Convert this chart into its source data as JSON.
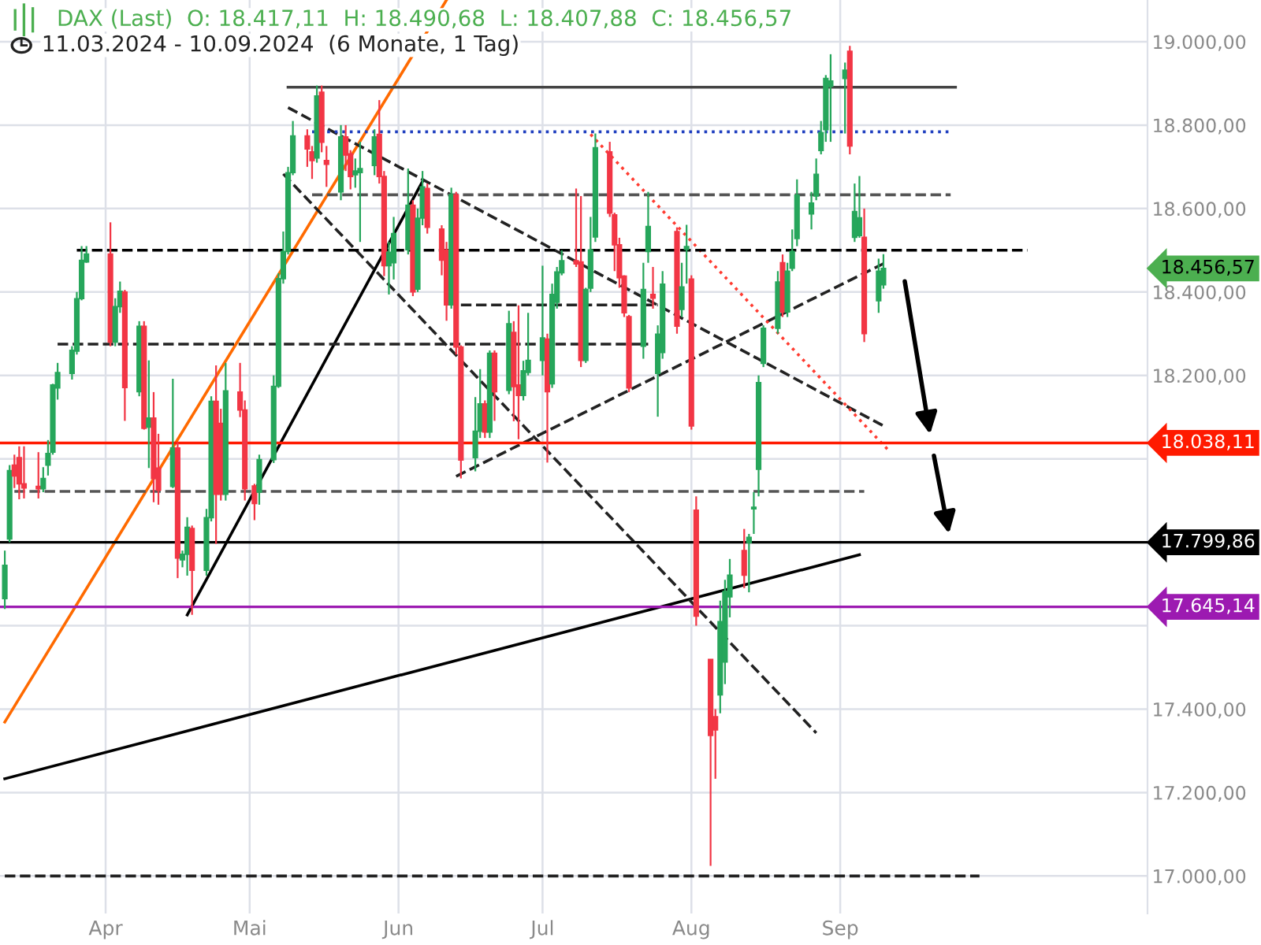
{
  "chart_data": {
    "type": "candlestick",
    "title": "DAX (Last)  O: 18.417,11  H: 18.490,68  L: 18.407,88  C: 18.456,57",
    "subtitle": "11.03.2024 - 10.09.2024  (6 Monate, 1 Tag)",
    "x": [
      "2024-03-11",
      "2024-03-12",
      "2024-03-13",
      "2024-03-14",
      "2024-03-15",
      "2024-03-18",
      "2024-03-19",
      "2024-03-20",
      "2024-03-21",
      "2024-03-22",
      "2024-03-25",
      "2024-03-26",
      "2024-03-27",
      "2024-03-28",
      "2024-04-02",
      "2024-04-03",
      "2024-04-04",
      "2024-04-05",
      "2024-04-08",
      "2024-04-09",
      "2024-04-10",
      "2024-04-11",
      "2024-04-12",
      "2024-04-15",
      "2024-04-16",
      "2024-04-17",
      "2024-04-18",
      "2024-04-19",
      "2024-04-22",
      "2024-04-23",
      "2024-04-24",
      "2024-04-25",
      "2024-04-26",
      "2024-04-29",
      "2024-04-30",
      "2024-05-02",
      "2024-05-03",
      "2024-05-06",
      "2024-05-07",
      "2024-05-08",
      "2024-05-09",
      "2024-05-10",
      "2024-05-13",
      "2024-05-14",
      "2024-05-15",
      "2024-05-16",
      "2024-05-17",
      "2024-05-20",
      "2024-05-21",
      "2024-05-22",
      "2024-05-23",
      "2024-05-24",
      "2024-05-27",
      "2024-05-28",
      "2024-05-29",
      "2024-05-30",
      "2024-05-31",
      "2024-06-03",
      "2024-06-04",
      "2024-06-05",
      "2024-06-06",
      "2024-06-07",
      "2024-06-10",
      "2024-06-11",
      "2024-06-12",
      "2024-06-13",
      "2024-06-14",
      "2024-06-17",
      "2024-06-18",
      "2024-06-19",
      "2024-06-20",
      "2024-06-21",
      "2024-06-24",
      "2024-06-25",
      "2024-06-26",
      "2024-06-27",
      "2024-06-28",
      "2024-07-01",
      "2024-07-02",
      "2024-07-03",
      "2024-07-04",
      "2024-07-05",
      "2024-07-08",
      "2024-07-09",
      "2024-07-10",
      "2024-07-11",
      "2024-07-12",
      "2024-07-15",
      "2024-07-16",
      "2024-07-17",
      "2024-07-18",
      "2024-07-19",
      "2024-07-22",
      "2024-07-23",
      "2024-07-24",
      "2024-07-25",
      "2024-07-26",
      "2024-07-29",
      "2024-07-30",
      "2024-07-31",
      "2024-08-01",
      "2024-08-02",
      "2024-08-05",
      "2024-08-06",
      "2024-08-07",
      "2024-08-08",
      "2024-08-09",
      "2024-08-12",
      "2024-08-13",
      "2024-08-14",
      "2024-08-15",
      "2024-08-16",
      "2024-08-19",
      "2024-08-20",
      "2024-08-21",
      "2024-08-22",
      "2024-08-23",
      "2024-08-26",
      "2024-08-27",
      "2024-08-28",
      "2024-08-29",
      "2024-08-30",
      "2024-09-02",
      "2024-09-03",
      "2024-09-04",
      "2024-09-05",
      "2024-09-06",
      "2024-09-09",
      "2024-09-10"
    ],
    "ohlc": [
      [
        17665,
        17780,
        17640,
        17745
      ],
      [
        17808,
        17985,
        17800,
        17972
      ],
      [
        17985,
        18010,
        17930,
        17959
      ],
      [
        18003,
        18030,
        17903,
        17940
      ],
      [
        17940,
        18030,
        17905,
        17930
      ],
      [
        17934,
        18016,
        17905,
        17928
      ],
      [
        17928,
        17980,
        17920,
        17953
      ],
      [
        17985,
        18045,
        17960,
        18013
      ],
      [
        18016,
        18180,
        18010,
        18177
      ],
      [
        18170,
        18230,
        18142,
        18207
      ],
      [
        18205,
        18270,
        18190,
        18260
      ],
      [
        18258,
        18400,
        18250,
        18384
      ],
      [
        18384,
        18510,
        18380,
        18476
      ],
      [
        18472,
        18510,
        18470,
        18491
      ],
      [
        18491,
        18567,
        18270,
        18280
      ],
      [
        18280,
        18385,
        18270,
        18365
      ],
      [
        18365,
        18425,
        18350,
        18402
      ],
      [
        18400,
        18405,
        18091,
        18171
      ],
      [
        18161,
        18330,
        18150,
        18318
      ],
      [
        18318,
        18330,
        18070,
        18073
      ],
      [
        18076,
        18236,
        17978,
        18098
      ],
      [
        18098,
        18160,
        17896,
        17953
      ],
      [
        17978,
        18060,
        17890,
        17925
      ],
      [
        17934,
        18192,
        17930,
        18026
      ],
      [
        18026,
        18040,
        17714,
        17762
      ],
      [
        17758,
        17780,
        17740,
        17771
      ],
      [
        17771,
        17860,
        17720,
        17836
      ],
      [
        17833,
        17840,
        17626,
        17733
      ],
      [
        17733,
        17880,
        17720,
        17859
      ],
      [
        17859,
        18150,
        17850,
        18138
      ],
      [
        18138,
        18224,
        17796,
        17915
      ],
      [
        18085,
        18120,
        17900,
        17915
      ],
      [
        17915,
        18230,
        17900,
        18163
      ],
      [
        18160,
        18230,
        18100,
        18117
      ],
      [
        18117,
        18140,
        17900,
        17928
      ],
      [
        17935,
        17940,
        17853,
        17893
      ],
      [
        17920,
        18010,
        17890,
        17998
      ],
      [
        17998,
        18200,
        17990,
        18174
      ],
      [
        18174,
        18445,
        18170,
        18432
      ],
      [
        18432,
        18545,
        18420,
        18497
      ],
      [
        18497,
        18700,
        18490,
        18686
      ],
      [
        18686,
        18810,
        18680,
        18774
      ],
      [
        18774,
        18790,
        18700,
        18743
      ],
      [
        18736,
        18750,
        18671,
        18715
      ],
      [
        18721,
        18895,
        18710,
        18870
      ],
      [
        18879,
        18895,
        18735,
        18759
      ],
      [
        18715,
        18750,
        18652,
        18706
      ],
      [
        18640,
        18800,
        18620,
        18772
      ],
      [
        18772,
        18800,
        18690,
        18728
      ],
      [
        18731,
        18740,
        18646,
        18677
      ],
      [
        18681,
        18720,
        18650,
        18690
      ],
      [
        18686,
        18760,
        18520,
        18696
      ],
      [
        18703,
        18790,
        18680,
        18772
      ],
      [
        18778,
        18860,
        18660,
        18677
      ],
      [
        18677,
        18690,
        18438,
        18463
      ],
      [
        18463,
        18520,
        18394,
        18495
      ],
      [
        18470,
        18580,
        18430,
        18540
      ],
      [
        18501,
        18696,
        18490,
        18608
      ],
      [
        18608,
        18620,
        18390,
        18400
      ],
      [
        18407,
        18600,
        18400,
        18577
      ],
      [
        18577,
        18690,
        18560,
        18652
      ],
      [
        18648,
        18660,
        18540,
        18555
      ],
      [
        18551,
        18560,
        18440,
        18476
      ],
      [
        18501,
        18520,
        18331,
        18369
      ],
      [
        18369,
        18650,
        18360,
        18633
      ],
      [
        18633,
        18640,
        18250,
        18268
      ],
      [
        18268,
        18272,
        17953,
        17997
      ],
      [
        18003,
        18148,
        17970,
        18066
      ],
      [
        18066,
        18215,
        18050,
        18132
      ],
      [
        18132,
        18140,
        18050,
        18064
      ],
      [
        18064,
        18260,
        18050,
        18253
      ],
      [
        18253,
        18260,
        18091,
        18161
      ],
      [
        18164,
        18355,
        18155,
        18324
      ],
      [
        18303,
        18330,
        18090,
        18173
      ],
      [
        18177,
        18368,
        18047,
        18152
      ],
      [
        18152,
        18235,
        18140,
        18211
      ],
      [
        18207,
        18350,
        18200,
        18236
      ],
      [
        18236,
        18463,
        18200,
        18290
      ],
      [
        18287,
        18300,
        17991,
        18161
      ],
      [
        18180,
        18420,
        18170,
        18394
      ],
      [
        18375,
        18460,
        18360,
        18448
      ],
      [
        18446,
        18500,
        18440,
        18475
      ],
      [
        18475,
        18648,
        18460,
        18467
      ],
      [
        18472,
        18630,
        18220,
        18236
      ],
      [
        18236,
        18410,
        18230,
        18406
      ],
      [
        18409,
        18580,
        18400,
        18501
      ],
      [
        18532,
        18780,
        18520,
        18746
      ],
      [
        18736,
        18760,
        18580,
        18589
      ],
      [
        18585,
        18590,
        18450,
        18513
      ],
      [
        18513,
        18530,
        18410,
        18434
      ],
      [
        18438,
        18440,
        18340,
        18350
      ],
      [
        18341,
        18345,
        18160,
        18170
      ],
      [
        18270,
        18470,
        18240,
        18406
      ],
      [
        18497,
        18640,
        18470,
        18557
      ],
      [
        18394,
        18460,
        18360,
        18385
      ],
      [
        18205,
        18320,
        18101,
        18299
      ],
      [
        18255,
        18450,
        18240,
        18419
      ],
      [
        18545,
        18555,
        18300,
        18318
      ],
      [
        18358,
        18470,
        18340,
        18412
      ],
      [
        18502,
        18561,
        18420,
        18509
      ],
      [
        18431,
        18440,
        18070,
        18079
      ],
      [
        17877,
        17910,
        17600,
        17623
      ],
      [
        17519,
        17520,
        17024,
        17337
      ],
      [
        17382,
        17400,
        17233,
        17350
      ],
      [
        17434,
        17660,
        17390,
        17610
      ],
      [
        17513,
        17710,
        17460,
        17682
      ],
      [
        17669,
        17760,
        17620,
        17721
      ],
      [
        17780,
        17832,
        17690,
        17721
      ],
      [
        17799,
        17820,
        17680,
        17812
      ],
      [
        17880,
        17920,
        17820,
        17884
      ],
      [
        17975,
        18200,
        17910,
        18183
      ],
      [
        18229,
        18320,
        18220,
        18313
      ],
      [
        18313,
        18450,
        18300,
        18424
      ],
      [
        18470,
        18490,
        18340,
        18352
      ],
      [
        18352,
        18470,
        18340,
        18450
      ],
      [
        18457,
        18550,
        18450,
        18497
      ],
      [
        18528,
        18670,
        18510,
        18632
      ],
      [
        18587,
        18640,
        18550,
        18613
      ],
      [
        18630,
        18720,
        18620,
        18682
      ],
      [
        18739,
        18810,
        18730,
        18782
      ],
      [
        18789,
        18920,
        18760,
        18912
      ],
      [
        18893,
        18970,
        18760,
        18906
      ],
      [
        18912,
        18950,
        18780,
        18932
      ],
      [
        18977,
        18990,
        18730,
        18750
      ],
      [
        18531,
        18660,
        18520,
        18593
      ],
      [
        18535,
        18678,
        18530,
        18578
      ],
      [
        18531,
        18600,
        18280,
        18300
      ],
      [
        18379,
        18480,
        18350,
        18450
      ],
      [
        18417.11,
        18490.68,
        18407.88,
        18456.57
      ]
    ],
    "colors": [
      "#26a65b",
      "#26a65b",
      "#f23645",
      "#f23645",
      "#f23645",
      "#f23645",
      "#26a65b",
      "#26a65b",
      "#26a65b",
      "#26a65b",
      "#26a65b",
      "#26a65b",
      "#26a65b",
      "#26a65b",
      "#f23645",
      "#26a65b",
      "#26a65b",
      "#f23645",
      "#26a65b",
      "#f23645",
      "#26a65b",
      "#f23645",
      "#f23645",
      "#26a65b",
      "#f23645",
      "#26a65b",
      "#26a65b",
      "#f23645",
      "#26a65b",
      "#26a65b",
      "#f23645",
      "#f23645",
      "#26a65b",
      "#f23645",
      "#f23645",
      "#f23645",
      "#26a65b",
      "#26a65b",
      "#26a65b",
      "#26a65b",
      "#26a65b",
      "#26a65b",
      "#f23645",
      "#f23645",
      "#26a65b",
      "#f23645",
      "#f23645",
      "#26a65b",
      "#f23645",
      "#f23645",
      "#26a65b",
      "#26a65b",
      "#26a65b",
      "#f23645",
      "#f23645",
      "#26a65b",
      "#26a65b",
      "#26a65b",
      "#f23645",
      "#26a65b",
      "#26a65b",
      "#f23645",
      "#f23645",
      "#f23645",
      "#26a65b",
      "#f23645",
      "#f23645",
      "#26a65b",
      "#26a65b",
      "#f23645",
      "#26a65b",
      "#f23645",
      "#26a65b",
      "#f23645",
      "#f23645",
      "#26a65b",
      "#26a65b",
      "#26a65b",
      "#f23645",
      "#26a65b",
      "#26a65b",
      "#26a65b",
      "#f23645",
      "#f23645",
      "#26a65b",
      "#26a65b",
      "#26a65b",
      "#f23645",
      "#f23645",
      "#f23645",
      "#f23645",
      "#f23645",
      "#26a65b",
      "#26a65b",
      "#f23645",
      "#26a65b",
      "#26a65b",
      "#f23645",
      "#26a65b",
      "#26a65b",
      "#f23645",
      "#f23645",
      "#f23645",
      "#f23645",
      "#26a65b",
      "#26a65b",
      "#26a65b",
      "#f23645",
      "#26a65b",
      "#26a65b",
      "#26a65b",
      "#26a65b",
      "#26a65b",
      "#f23645",
      "#26a65b",
      "#26a65b",
      "#26a65b",
      "#26a65b",
      "#26a65b",
      "#26a65b",
      "#26a65b",
      "#26a65b",
      "#26a65b",
      "#f23645",
      "#26a65b",
      "#26a65b",
      "#f23645",
      "#26a65b",
      "#26a65b"
    ],
    "series": [
      {
        "type": "line",
        "x": [
          "2024-03-11",
          "2024-06-11"
        ],
        "values": [
          17369,
          19100
        ],
        "color": "#ff6a00",
        "line_style": "solid"
      },
      {
        "type": "line",
        "x": [
          "2024-04-18",
          "2024-06-06"
        ],
        "values": [
          17626,
          18665
        ],
        "color": "#000000",
        "line_style": "solid"
      },
      {
        "type": "line",
        "x": [
          "2024-03-11",
          "2024-09-05"
        ],
        "values": [
          17233,
          17770
        ],
        "color": "#000000",
        "line_style": "solid"
      },
      {
        "type": "line",
        "x": [
          "2024-05-09",
          "2024-09-10"
        ],
        "values": [
          18842,
          18079
        ],
        "color": "#222222",
        "line_style": "dashed"
      },
      {
        "type": "line",
        "x": [
          "2024-05-08",
          "2024-08-27"
        ],
        "values": [
          18683,
          17343
        ],
        "color": "#222222",
        "line_style": "dashed"
      },
      {
        "type": "line",
        "x": [
          "2024-06-13",
          "2024-09-10"
        ],
        "values": [
          17958,
          18468
        ],
        "color": "#222222",
        "line_style": "dashed"
      },
      {
        "type": "line",
        "x": [
          "2024-07-11",
          "2024-09-11"
        ],
        "values": [
          18778,
          18021
        ],
        "color": "#ff3b30",
        "line_style": "dotted"
      },
      {
        "type": "line",
        "x": [
          "2024-03-26",
          "2024-10-10"
        ],
        "values": [
          18500,
          18500
        ],
        "color": "#000000",
        "line_style": "dashed"
      },
      {
        "type": "line",
        "x": [
          "2024-05-14",
          "2024-09-24"
        ],
        "values": [
          18784,
          18784
        ],
        "color": "#1f3fbf",
        "line_style": "dotted"
      },
      {
        "type": "line",
        "x": [
          "2024-05-09",
          "2024-09-25"
        ],
        "values": [
          18891,
          18891
        ],
        "color": "#444444",
        "line_style": "solid"
      },
      {
        "type": "line",
        "x": [
          "2024-05-14",
          "2024-09-24"
        ],
        "values": [
          18633,
          18633
        ],
        "color": "#555555",
        "line_style": "dashed"
      },
      {
        "type": "line",
        "x": [
          "2024-03-22",
          "2024-07-23"
        ],
        "values": [
          18275,
          18275
        ],
        "color": "#222222",
        "line_style": "dashed"
      },
      {
        "type": "line",
        "x": [
          "2024-06-14",
          "2024-07-25"
        ],
        "values": [
          18369,
          18369
        ],
        "color": "#222222",
        "line_style": "dashed"
      },
      {
        "type": "line",
        "x": [
          "2024-03-13",
          "2024-09-06"
        ],
        "values": [
          17922,
          17922
        ],
        "color": "#555555",
        "line_style": "dashed"
      },
      {
        "type": "line",
        "x": [
          "2024-03-11",
          "2024-09-30"
        ],
        "values": [
          17000,
          17000
        ],
        "color": "#222222",
        "line_style": "dashed"
      }
    ],
    "annotations": [
      "18.456,57"
    ],
    "ref_lines": [
      {
        "axis": "y",
        "value": 18038.11,
        "label": "18.038,11",
        "color": "#ff1a00",
        "line_style": "solid"
      },
      {
        "axis": "y",
        "value": 17799.86,
        "label": "17.799,86",
        "color": "#000000",
        "line_style": "solid"
      },
      {
        "axis": "y",
        "value": 17645.14,
        "label": "17.645,14",
        "color": "#9c1ab1",
        "line_style": "solid"
      }
    ],
    "xlim": [
      "2024-03-10",
      "2024-11-04"
    ],
    "xticks": [
      {
        "value": "2024-04-01",
        "label": "Apr"
      },
      {
        "value": "2024-05-01",
        "label": "Mai"
      },
      {
        "value": "2024-06-01",
        "label": "Jun"
      },
      {
        "value": "2024-07-01",
        "label": "Jul"
      },
      {
        "value": "2024-08-01",
        "label": "Aug"
      },
      {
        "value": "2024-09-01",
        "label": "Sep"
      }
    ],
    "ylim": [
      16910,
      19100
    ],
    "yticks": [
      {
        "value": 17000,
        "label": "17.000,00"
      },
      {
        "value": 17200,
        "label": "17.200,00"
      },
      {
        "value": 17400,
        "label": "17.400,00"
      },
      {
        "value": 17600,
        "label": null
      },
      {
        "value": 17800,
        "label": null
      },
      {
        "value": 18000,
        "label": null
      },
      {
        "value": 18200,
        "label": "18.200,00"
      },
      {
        "value": 18400,
        "label": "18.400,00"
      },
      {
        "value": 18600,
        "label": "18.600,00"
      },
      {
        "value": 18800,
        "label": "18.800,00"
      },
      {
        "value": 19000,
        "label": "19.000,00"
      }
    ],
    "grid": true
  }
}
